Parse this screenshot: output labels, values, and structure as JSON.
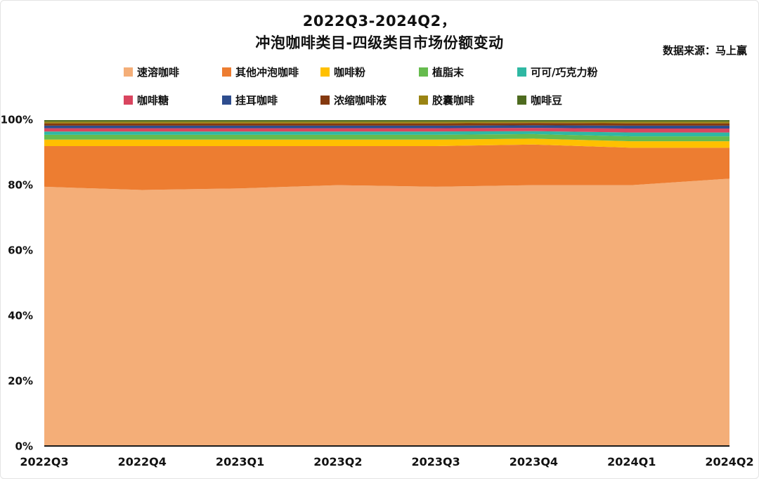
{
  "header": {
    "title_line1": "2022Q3-2024Q2，",
    "title_line2": "冲泡咖啡类目-四级类目市场份额变动",
    "source": "数据来源：马上赢"
  },
  "chart_data": {
    "type": "area",
    "stacked": true,
    "percent_stacked": true,
    "title": "2022Q3-2024Q2，冲泡咖啡类目-四级类目市场份额变动",
    "xlabel": "",
    "ylabel": "",
    "ylim": [
      0,
      100
    ],
    "yticks": [
      0,
      20,
      40,
      60,
      80,
      100
    ],
    "grid": false,
    "legend_position": "top",
    "categories": [
      "2022Q3",
      "2022Q4",
      "2023Q1",
      "2023Q2",
      "2023Q3",
      "2023Q4",
      "2024Q1",
      "2024Q2"
    ],
    "series": [
      {
        "name": "速溶咖啡",
        "color": "#F4AE78",
        "values": [
          79.5,
          78.5,
          79.0,
          80.0,
          79.5,
          80.0,
          80.0,
          82.0
        ]
      },
      {
        "name": "其他冲泡咖啡",
        "color": "#ED7D31",
        "values": [
          12.5,
          13.5,
          13.0,
          12.0,
          12.5,
          12.5,
          11.5,
          9.5
        ]
      },
      {
        "name": "咖啡粉",
        "color": "#FFC000",
        "values": [
          2.0,
          2.0,
          2.0,
          2.0,
          2.0,
          1.8,
          2.0,
          2.0
        ]
      },
      {
        "name": "植脂末",
        "color": "#66BB4E",
        "values": [
          1.5,
          1.5,
          1.5,
          1.5,
          1.5,
          1.4,
          1.5,
          1.5
        ]
      },
      {
        "name": "可可/巧克力粉",
        "color": "#2FB8A3",
        "values": [
          1.0,
          1.0,
          1.0,
          1.0,
          1.0,
          0.9,
          1.2,
          1.2
        ]
      },
      {
        "name": "咖啡糖",
        "color": "#D9455F",
        "values": [
          1.0,
          1.0,
          1.0,
          1.0,
          1.0,
          1.0,
          1.2,
          1.2
        ]
      },
      {
        "name": "挂耳咖啡",
        "color": "#2E4D8E",
        "values": [
          0.8,
          0.8,
          0.8,
          0.8,
          0.8,
          0.8,
          0.9,
          0.9
        ]
      },
      {
        "name": "浓缩咖啡液",
        "color": "#84390F",
        "values": [
          0.7,
          0.7,
          0.7,
          0.7,
          0.7,
          0.7,
          0.7,
          0.7
        ]
      },
      {
        "name": "胶囊咖啡",
        "color": "#9A8413",
        "values": [
          0.5,
          0.5,
          0.5,
          0.5,
          0.5,
          0.4,
          0.5,
          0.5
        ]
      },
      {
        "name": "咖啡豆",
        "color": "#4E6B1F",
        "values": [
          0.5,
          0.5,
          0.5,
          0.5,
          0.5,
          0.5,
          0.5,
          0.5
        ]
      }
    ]
  }
}
